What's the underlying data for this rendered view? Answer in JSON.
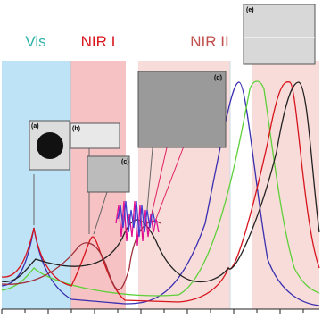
{
  "regions": [
    {
      "label": "Vis"
    },
    {
      "label": "NIR I"
    },
    {
      "label": "NIR II"
    }
  ],
  "insets": [
    {
      "label": "(a)"
    },
    {
      "label": "(b)"
    },
    {
      "label": "(c)"
    },
    {
      "label": "(d)"
    },
    {
      "label": "(e)"
    }
  ]
}
